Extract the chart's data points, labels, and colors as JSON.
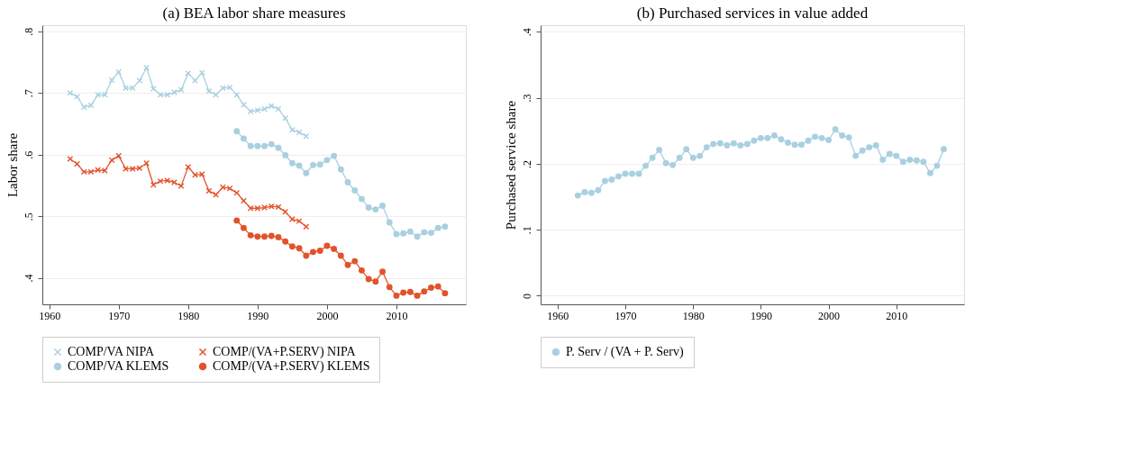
{
  "chart_data": [
    {
      "type": "line",
      "title": "(a) BEA labor share measures",
      "ylabel": "Labor share",
      "xlim": [
        1959,
        2020
      ],
      "xticks": [
        1960,
        1970,
        1980,
        1990,
        2000,
        2010
      ],
      "ylim": [
        0.357,
        0.81
      ],
      "yticks": [
        {
          "value": 0.4,
          "label": ".4"
        },
        {
          "value": 0.5,
          "label": ".5"
        },
        {
          "value": 0.6,
          "label": ".6"
        },
        {
          "value": 0.7,
          "label": ".7"
        },
        {
          "value": 0.8,
          "label": ".8"
        }
      ],
      "grid": "y",
      "legend": "bottom",
      "line_style": "solid",
      "series": [
        {
          "name": "COMP/VA NIPA",
          "color": "#a9d0e0",
          "marker": "cross",
          "x": [
            1963,
            1964,
            1965,
            1966,
            1967,
            1968,
            1969,
            1970,
            1971,
            1972,
            1973,
            1974,
            1975,
            1976,
            1977,
            1978,
            1979,
            1980,
            1981,
            1982,
            1983,
            1984,
            1985,
            1986,
            1987,
            1988,
            1989,
            1990,
            1991,
            1992,
            1993,
            1994,
            1995,
            1996,
            1997
          ],
          "values": [
            0.7,
            0.694,
            0.677,
            0.68,
            0.697,
            0.697,
            0.721,
            0.734,
            0.708,
            0.708,
            0.72,
            0.741,
            0.707,
            0.697,
            0.697,
            0.701,
            0.705,
            0.732,
            0.72,
            0.733,
            0.703,
            0.697,
            0.708,
            0.709,
            0.697,
            0.681,
            0.67,
            0.672,
            0.674,
            0.679,
            0.674,
            0.659,
            0.64,
            0.636,
            0.63
          ]
        },
        {
          "name": "COMP/(VA+P.SERV) NIPA",
          "color": "#e2532b",
          "marker": "cross",
          "x": [
            1963,
            1964,
            1965,
            1966,
            1967,
            1968,
            1969,
            1970,
            1971,
            1972,
            1973,
            1974,
            1975,
            1976,
            1977,
            1978,
            1979,
            1980,
            1981,
            1982,
            1983,
            1984,
            1985,
            1986,
            1987,
            1988,
            1989,
            1990,
            1991,
            1992,
            1993,
            1994,
            1995,
            1996,
            1997
          ],
          "values": [
            0.593,
            0.585,
            0.572,
            0.572,
            0.575,
            0.574,
            0.591,
            0.598,
            0.577,
            0.577,
            0.578,
            0.586,
            0.551,
            0.557,
            0.558,
            0.555,
            0.549,
            0.58,
            0.567,
            0.568,
            0.541,
            0.535,
            0.547,
            0.545,
            0.538,
            0.525,
            0.513,
            0.513,
            0.514,
            0.516,
            0.515,
            0.507,
            0.495,
            0.492,
            0.483
          ]
        },
        {
          "name": "COMP/VA KLEMS",
          "color": "#a9d0e0",
          "marker": "circle",
          "x": [
            1987,
            1988,
            1989,
            1990,
            1991,
            1992,
            1993,
            1994,
            1995,
            1996,
            1997,
            1998,
            1999,
            2000,
            2001,
            2002,
            2003,
            2004,
            2005,
            2006,
            2007,
            2008,
            2009,
            2010,
            2011,
            2012,
            2013,
            2014,
            2015,
            2016,
            2017
          ],
          "values": [
            0.638,
            0.626,
            0.614,
            0.614,
            0.614,
            0.617,
            0.611,
            0.599,
            0.586,
            0.582,
            0.57,
            0.583,
            0.584,
            0.591,
            0.598,
            0.576,
            0.555,
            0.542,
            0.528,
            0.514,
            0.511,
            0.517,
            0.49,
            0.471,
            0.472,
            0.475,
            0.467,
            0.474,
            0.473,
            0.481,
            0.483
          ]
        },
        {
          "name": "COMP/(VA+P.SERV) KLEMS",
          "color": "#e2532b",
          "marker": "circle",
          "x": [
            1987,
            1988,
            1989,
            1990,
            1991,
            1992,
            1993,
            1994,
            1995,
            1996,
            1997,
            1998,
            1999,
            2000,
            2001,
            2002,
            2003,
            2004,
            2005,
            2006,
            2007,
            2008,
            2009,
            2010,
            2011,
            2012,
            2013,
            2014,
            2015,
            2016,
            2017
          ],
          "values": [
            0.493,
            0.481,
            0.469,
            0.467,
            0.467,
            0.468,
            0.466,
            0.459,
            0.451,
            0.448,
            0.436,
            0.442,
            0.444,
            0.452,
            0.447,
            0.436,
            0.421,
            0.427,
            0.412,
            0.398,
            0.394,
            0.41,
            0.385,
            0.371,
            0.376,
            0.377,
            0.371,
            0.378,
            0.384,
            0.386,
            0.375
          ]
        }
      ]
    },
    {
      "type": "line",
      "title": "(b) Purchased services in value added",
      "ylabel": "Purchased service share",
      "xlim": [
        1957.5,
        2020
      ],
      "xticks": [
        1960,
        1970,
        1980,
        1990,
        2000,
        2010
      ],
      "ylim": [
        -0.013,
        0.41
      ],
      "yticks": [
        0,
        {
          "value": 0.1,
          "label": ".1"
        },
        {
          "value": 0.2,
          "label": ".2"
        },
        {
          "value": 0.3,
          "label": ".3"
        },
        {
          "value": 0.4,
          "label": ".4"
        }
      ],
      "grid": "y",
      "legend": "bottom",
      "line_style": "solid",
      "series": [
        {
          "name": "P. Serv / (VA + P. Serv)",
          "color": "#a9d0e0",
          "marker": "circle",
          "x": [
            1963,
            1964,
            1965,
            1966,
            1967,
            1968,
            1969,
            1970,
            1971,
            1972,
            1973,
            1974,
            1975,
            1976,
            1977,
            1978,
            1979,
            1980,
            1981,
            1982,
            1983,
            1984,
            1985,
            1986,
            1987,
            1988,
            1989,
            1990,
            1991,
            1992,
            1993,
            1994,
            1995,
            1996,
            1997,
            1998,
            1999,
            2000,
            2001,
            2002,
            2003,
            2004,
            2005,
            2006,
            2007,
            2008,
            2009,
            2010,
            2011,
            2012,
            2013,
            2014,
            2015,
            2016,
            2017
          ],
          "values": [
            0.152,
            0.157,
            0.156,
            0.16,
            0.174,
            0.176,
            0.181,
            0.185,
            0.185,
            0.185,
            0.197,
            0.209,
            0.221,
            0.201,
            0.198,
            0.209,
            0.222,
            0.209,
            0.212,
            0.225,
            0.23,
            0.231,
            0.228,
            0.231,
            0.228,
            0.23,
            0.235,
            0.239,
            0.239,
            0.243,
            0.237,
            0.232,
            0.229,
            0.229,
            0.235,
            0.241,
            0.239,
            0.236,
            0.252,
            0.243,
            0.24,
            0.212,
            0.22,
            0.225,
            0.228,
            0.206,
            0.215,
            0.212,
            0.203,
            0.206,
            0.205,
            0.203,
            0.186,
            0.197,
            0.222
          ]
        }
      ]
    }
  ]
}
